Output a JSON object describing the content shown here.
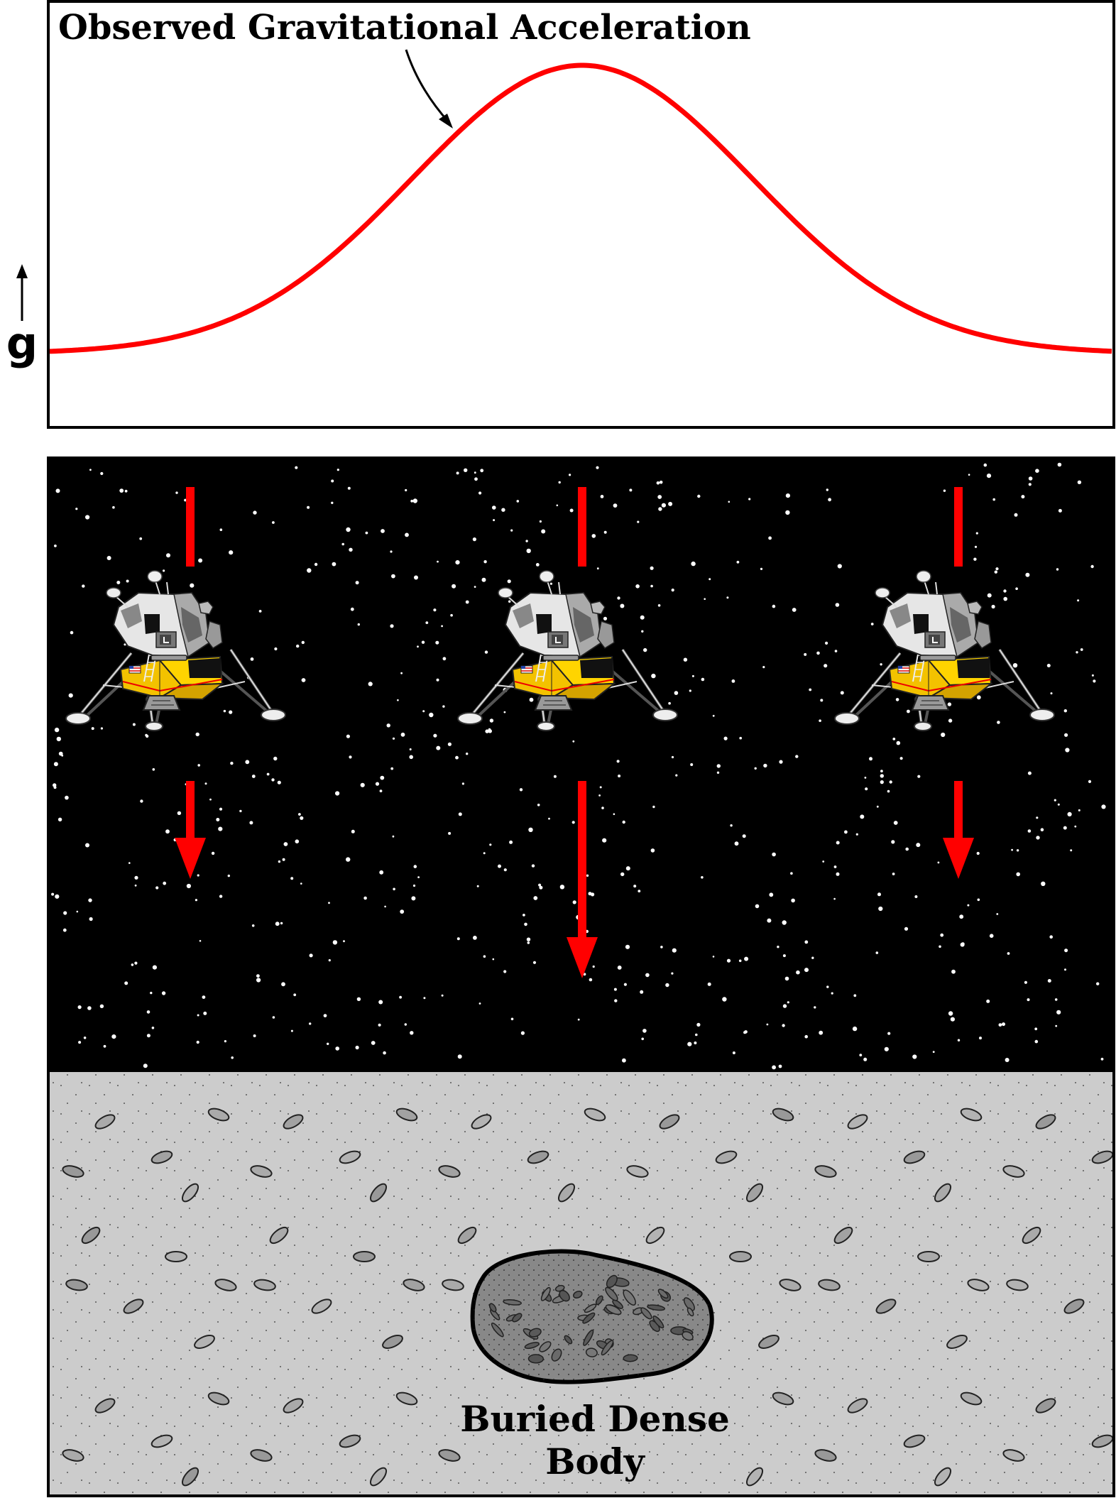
{
  "graph": {
    "curve_label": "Observed Gravitational Acceleration",
    "axis_symbol": "g",
    "curve_color": "#ff0000"
  },
  "scene": {
    "sky_color": "#000000",
    "ground_color": "#cccccc",
    "rock_color": "#888888",
    "arrow_color": "#ff0000",
    "body_label_line1": "Buried Dense",
    "body_label_line2": "Body",
    "landers": [
      {
        "name": "left",
        "pull": "short"
      },
      {
        "name": "center",
        "pull": "long"
      },
      {
        "name": "right",
        "pull": "short"
      }
    ]
  }
}
